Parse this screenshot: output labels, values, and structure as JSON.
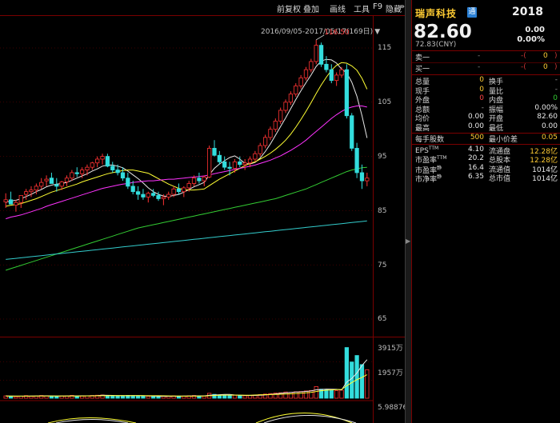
{
  "toolbar": {
    "items": [
      "前复权",
      "叠加",
      "画线",
      "工具",
      "F9",
      "隐藏"
    ],
    "more_glyph": "»"
  },
  "chart": {
    "date_range": "2016/09/05-2017/05/17(169日)",
    "range_arrow": "▼",
    "max_label": "116.50",
    "y_ticks": [
      "115",
      "105",
      "95",
      "85",
      "75",
      "65"
    ],
    "volume_ticks": [
      "3915万",
      "1957万"
    ],
    "bottom_value": "5.98876",
    "colors": {
      "up": "#ff3333",
      "down": "#33dddd",
      "ma5": "#e8e8e8",
      "ma10": "#ffff33",
      "ma20": "#ff33ff",
      "ma60": "#33cc33",
      "ma120": "#33cccc",
      "grid_red": "#7a0000"
    }
  },
  "chart_data": {
    "type": "candlestick",
    "ylim": [
      62,
      118
    ],
    "candles": [
      [
        86.6,
        88.2,
        85.5,
        87.0
      ],
      [
        87.0,
        88.5,
        86.5,
        86.2
      ],
      [
        86.0,
        87.0,
        84.8,
        86.5
      ],
      [
        86.5,
        87.5,
        85.5,
        87.8
      ],
      [
        88.0,
        89.0,
        87.0,
        88.5
      ],
      [
        88.5,
        89.5,
        87.5,
        88.8
      ],
      [
        88.8,
        90.0,
        88.0,
        89.5
      ],
      [
        89.5,
        91.0,
        89.0,
        90.2
      ],
      [
        90.5,
        91.5,
        89.5,
        90.8
      ],
      [
        91.0,
        92.0,
        90.0,
        90.0
      ],
      [
        89.8,
        91.0,
        88.5,
        89.5
      ],
      [
        89.5,
        90.5,
        88.8,
        90.3
      ],
      [
        90.3,
        91.5,
        89.5,
        91.0
      ],
      [
        91.0,
        92.5,
        90.5,
        92.0
      ],
      [
        92.0,
        93.0,
        91.2,
        91.8
      ],
      [
        91.8,
        93.0,
        91.0,
        92.5
      ],
      [
        92.5,
        93.5,
        91.5,
        93.0
      ],
      [
        93.0,
        94.0,
        92.5,
        93.8
      ],
      [
        93.8,
        95.0,
        93.0,
        94.5
      ],
      [
        94.5,
        95.5,
        93.5,
        95.0
      ],
      [
        95.0,
        95.5,
        93.0,
        93.2
      ],
      [
        93.2,
        94.0,
        92.0,
        92.5
      ],
      [
        92.5,
        93.5,
        91.5,
        92.0
      ],
      [
        92.0,
        93.0,
        90.5,
        91.0
      ],
      [
        91.0,
        92.0,
        89.0,
        89.5
      ],
      [
        89.5,
        90.5,
        88.0,
        88.5
      ],
      [
        88.5,
        89.5,
        87.0,
        88.0
      ],
      [
        88.0,
        89.0,
        87.0,
        87.5
      ],
      [
        87.5,
        88.5,
        86.5,
        88.2
      ],
      [
        88.2,
        89.0,
        87.5,
        87.8
      ],
      [
        87.8,
        88.5,
        86.8,
        87.2
      ],
      [
        87.2,
        88.0,
        86.0,
        87.5
      ],
      [
        87.5,
        88.5,
        87.0,
        88.0
      ],
      [
        88.0,
        89.5,
        87.5,
        89.0
      ],
      [
        89.0,
        90.0,
        88.0,
        88.5
      ],
      [
        88.5,
        89.5,
        87.5,
        89.2
      ],
      [
        89.2,
        90.5,
        88.5,
        90.0
      ],
      [
        90.0,
        91.5,
        89.5,
        91.0
      ],
      [
        91.0,
        92.0,
        90.0,
        90.5
      ],
      [
        90.5,
        91.5,
        89.5,
        91.2
      ],
      [
        91.2,
        97.0,
        91.0,
        96.5
      ],
      [
        96.5,
        98.0,
        95.0,
        95.2
      ],
      [
        95.2,
        96.0,
        93.5,
        94.0
      ],
      [
        94.0,
        95.0,
        92.5,
        93.0
      ],
      [
        93.0,
        94.0,
        91.5,
        92.8
      ],
      [
        92.8,
        94.5,
        92.0,
        94.0
      ],
      [
        94.0,
        95.0,
        93.0,
        93.5
      ],
      [
        93.5,
        94.5,
        92.5,
        93.8
      ],
      [
        93.8,
        95.0,
        93.0,
        94.5
      ],
      [
        94.5,
        96.0,
        94.0,
        95.5
      ],
      [
        95.5,
        97.5,
        95.0,
        97.0
      ],
      [
        97.0,
        99.0,
        96.5,
        98.5
      ],
      [
        98.5,
        100.5,
        98.0,
        100.0
      ],
      [
        100.0,
        102.0,
        99.5,
        101.5
      ],
      [
        101.5,
        104.0,
        101.0,
        103.5
      ],
      [
        103.5,
        105.5,
        103.0,
        105.0
      ],
      [
        105.0,
        107.0,
        104.5,
        106.5
      ],
      [
        106.5,
        108.5,
        106.0,
        108.0
      ],
      [
        108.0,
        110.0,
        107.5,
        109.5
      ],
      [
        109.5,
        111.5,
        109.0,
        111.0
      ],
      [
        111.0,
        113.0,
        110.5,
        112.5
      ],
      [
        112.5,
        116.5,
        112.0,
        115.5
      ],
      [
        115.5,
        116.0,
        111.5,
        112.0
      ],
      [
        112.0,
        113.5,
        110.5,
        111.0
      ],
      [
        111.0,
        112.0,
        108.5,
        109.0
      ],
      [
        109.0,
        110.5,
        108.0,
        110.0
      ],
      [
        110.0,
        111.5,
        109.5,
        111.0
      ],
      [
        111.0,
        112.0,
        102.0,
        102.5
      ],
      [
        102.5,
        103.0,
        96.0,
        96.5
      ],
      [
        96.5,
        97.5,
        91.0,
        92.0
      ],
      [
        92.0,
        93.5,
        89.0,
        90.5
      ],
      [
        90.5,
        92.0,
        89.5,
        91.0
      ]
    ],
    "ma_series": [
      {
        "key": "ma5",
        "values": [
          86.5,
          86.8,
          86.9,
          87.2,
          87.6,
          88.0,
          88.5,
          88.9,
          89.4,
          89.7,
          89.9,
          90.0,
          90.2,
          90.6,
          91.0,
          91.4,
          91.8,
          92.3,
          92.7,
          93.2,
          93.4,
          93.4,
          93.2,
          92.9,
          92.3,
          91.6,
          90.9,
          90.1,
          89.2,
          88.5,
          88.0,
          87.7,
          87.6,
          87.8,
          88.0,
          88.4,
          88.9,
          89.4,
          89.8,
          90.2,
          91.6,
          92.8,
          93.6,
          94.2,
          94.8,
          95.1,
          94.5,
          93.7,
          93.6,
          93.9,
          94.7,
          95.9,
          97.3,
          98.9,
          100.5,
          102.1,
          103.8,
          105.5,
          107.1,
          108.6,
          110.0,
          111.6,
          112.6,
          112.9,
          112.8,
          112.2,
          111.1,
          110.4,
          108.7,
          106.1,
          102.5,
          98.4
        ]
      },
      {
        "key": "ma10",
        "values": [
          85.8,
          86.0,
          86.1,
          86.3,
          86.6,
          86.9,
          87.2,
          87.6,
          88.0,
          88.4,
          88.7,
          89.0,
          89.3,
          89.6,
          89.9,
          90.3,
          90.6,
          90.9,
          91.2,
          91.5,
          91.8,
          92.0,
          92.2,
          92.4,
          92.5,
          92.5,
          92.3,
          92.1,
          91.9,
          91.4,
          90.9,
          90.4,
          89.9,
          89.5,
          89.1,
          88.9,
          88.8,
          88.8,
          88.9,
          89.0,
          89.6,
          90.2,
          90.8,
          91.3,
          91.8,
          92.3,
          92.8,
          93.3,
          93.7,
          94.0,
          94.5,
          95.0,
          95.6,
          96.3,
          97.1,
          98.0,
          99.1,
          100.4,
          101.8,
          103.3,
          104.9,
          106.6,
          108.2,
          109.6,
          110.9,
          111.8,
          112.3,
          112.2,
          111.7,
          110.9,
          109.4,
          107.4
        ]
      },
      {
        "key": "ma20",
        "values": [
          83.5,
          83.8,
          84.0,
          84.2,
          84.5,
          84.8,
          85.1,
          85.4,
          85.8,
          86.1,
          86.4,
          86.7,
          87.0,
          87.3,
          87.6,
          87.9,
          88.2,
          88.5,
          88.8,
          89.1,
          89.3,
          89.5,
          89.7,
          89.9,
          90.0,
          90.2,
          90.3,
          90.4,
          90.5,
          90.5,
          90.6,
          90.7,
          90.8,
          90.8,
          90.9,
          91.0,
          91.1,
          91.2,
          91.3,
          91.4,
          91.6,
          91.8,
          92.0,
          92.2,
          92.4,
          92.6,
          92.8,
          93.0,
          93.2,
          93.4,
          93.7,
          94.0,
          94.3,
          94.7,
          95.1,
          95.6,
          96.1,
          96.7,
          97.3,
          98.0,
          98.8,
          99.6,
          100.4,
          101.2,
          102.0,
          102.7,
          103.3,
          103.8,
          104.1,
          104.3,
          104.3,
          104.1
        ]
      },
      {
        "key": "ma60",
        "values": [
          74.0,
          74.3,
          74.6,
          74.9,
          75.2,
          75.5,
          75.8,
          76.1,
          76.4,
          76.7,
          77.0,
          77.3,
          77.6,
          77.9,
          78.2,
          78.5,
          78.8,
          79.1,
          79.4,
          79.7,
          80.0,
          80.3,
          80.6,
          80.9,
          81.2,
          81.5,
          81.8,
          82.0,
          82.2,
          82.4,
          82.6,
          82.8,
          83.0,
          83.2,
          83.4,
          83.6,
          83.8,
          84.0,
          84.2,
          84.4,
          84.6,
          84.8,
          85.0,
          85.2,
          85.4,
          85.6,
          85.8,
          86.0,
          86.2,
          86.4,
          86.6,
          86.8,
          87.0,
          87.2,
          87.5,
          87.8,
          88.1,
          88.4,
          88.7,
          89.0,
          89.4,
          89.8,
          90.2,
          90.6,
          91.0,
          91.4,
          91.8,
          92.2,
          92.5,
          92.7,
          92.9,
          93.0
        ]
      },
      {
        "key": "ma120",
        "values": [
          76.0,
          76.1,
          76.2,
          76.3,
          76.4,
          76.5,
          76.6,
          76.7,
          76.8,
          76.9,
          77.0,
          77.1,
          77.2,
          77.3,
          77.4,
          77.5,
          77.6,
          77.7,
          77.8,
          77.9,
          78.0,
          78.1,
          78.2,
          78.3,
          78.4,
          78.5,
          78.6,
          78.7,
          78.8,
          78.9,
          79.0,
          79.1,
          79.2,
          79.3,
          79.4,
          79.5,
          79.6,
          79.7,
          79.8,
          79.9,
          80.0,
          80.1,
          80.2,
          80.3,
          80.4,
          80.5,
          80.6,
          80.7,
          80.8,
          80.9,
          81.0,
          81.1,
          81.2,
          81.3,
          81.4,
          81.5,
          81.6,
          81.7,
          81.8,
          81.9,
          82.0,
          82.1,
          82.2,
          82.3,
          82.4,
          82.5,
          82.6,
          82.7,
          82.8,
          82.9,
          83.0,
          83.1
        ]
      }
    ],
    "volume_ylim": [
      0,
      4200
    ],
    "volumes": [
      180,
      150,
      120,
      160,
      200,
      140,
      170,
      210,
      190,
      160,
      150,
      170,
      180,
      220,
      160,
      170,
      190,
      210,
      230,
      250,
      200,
      180,
      170,
      190,
      220,
      200,
      170,
      160,
      150,
      140,
      130,
      150,
      160,
      180,
      170,
      160,
      190,
      210,
      180,
      170,
      380,
      300,
      250,
      230,
      210,
      230,
      200,
      190,
      210,
      240,
      280,
      320,
      360,
      400,
      420,
      480,
      450,
      500,
      520,
      560,
      600,
      900,
      700,
      650,
      600,
      580,
      620,
      3915,
      2800,
      3300,
      2600,
      2200
    ],
    "volume_ma": [
      {
        "key": "ma5",
        "values": [
          170,
          165,
          158,
          160,
          162,
          168,
          172,
          180,
          185,
          178,
          172,
          170,
          172,
          180,
          182,
          184,
          186,
          192,
          206,
          226,
          222,
          214,
          204,
          196,
          192,
          196,
          198,
          192,
          182,
          168,
          154,
          148,
          146,
          152,
          156,
          164,
          172,
          180,
          182,
          180,
          230,
          250,
          270,
          290,
          290,
          250,
          228,
          214,
          210,
          218,
          230,
          254,
          296,
          334,
          376,
          422,
          452,
          474,
          496,
          528,
          560,
          646,
          676,
          706,
          700,
          686,
          640,
          1246,
          1524,
          1946,
          2527,
          2978
        ]
      },
      {
        "key": "ma10",
        "values": [
          165,
          163,
          161,
          160,
          160,
          162,
          165,
          168,
          172,
          173,
          171,
          170,
          169,
          170,
          172,
          174,
          178,
          182,
          186,
          190,
          194,
          196,
          198,
          199,
          200,
          199,
          198,
          196,
          194,
          193,
          190,
          186,
          180,
          172,
          166,
          159,
          160,
          162,
          167,
          168,
          191,
          210,
          226,
          238,
          242,
          240,
          239,
          236,
          237,
          245,
          260,
          276,
          286,
          294,
          308,
          324,
          340,
          364,
          390,
          416,
          444,
          520,
          582,
          620,
          640,
          662,
          680,
          964,
          1213,
          1436,
          1614,
          1813
        ]
      }
    ]
  },
  "panel": {
    "stock_name": "瑞声科技",
    "tong_badge": "通",
    "code": "2018",
    "price": "82.60",
    "change": "0.00",
    "change_pct": "0.00%",
    "sub_price": "72.83(CNY)",
    "quotes": [
      {
        "label": "卖一",
        "mid": "-",
        "paren_left": "-(",
        "value": "0",
        "paren_right": ")"
      },
      {
        "label": "买一",
        "mid": "-",
        "paren_left": "-(",
        "value": "0",
        "paren_right": ")"
      }
    ],
    "stats_rows": [
      [
        {
          "label": "总量",
          "value": "0",
          "vc": "yellow"
        },
        {
          "label": "换手",
          "value": "-",
          "vc": "grey"
        }
      ],
      [
        {
          "label": "现手",
          "value": "0",
          "vc": "yellow"
        },
        {
          "label": "量比",
          "value": "-",
          "vc": "grey"
        }
      ],
      [
        {
          "label": "外盘",
          "value": "0",
          "vc": "red"
        },
        {
          "label": "内盘",
          "value": "0",
          "vc": "green"
        }
      ],
      [
        {
          "label": "总额",
          "value": "-",
          "vc": "grey"
        },
        {
          "label": "振幅",
          "value": "0.00%",
          "vc": "white"
        }
      ],
      [
        {
          "label": "均价",
          "value": "0.00",
          "vc": "white"
        },
        {
          "label": "开盘",
          "value": "82.60",
          "vc": "white"
        }
      ],
      [
        {
          "label": "最高",
          "value": "0.00",
          "vc": "white"
        },
        {
          "label": "最低",
          "value": "0.00",
          "vc": "white"
        }
      ],
      [
        {
          "label": "每手股数",
          "value": "500",
          "vc": "yellow"
        },
        {
          "label": "最小价差",
          "value": "0.05",
          "vc": "yellow"
        }
      ],
      [
        {
          "label": "EPS",
          "sup": "TTM",
          "value": "4.10",
          "vc": "white"
        },
        {
          "label": "流通盘",
          "value": "12.28亿",
          "vc": "yellow"
        }
      ],
      [
        {
          "label": "市盈率",
          "sup": "TTM",
          "value": "20.2",
          "vc": "white"
        },
        {
          "label": "总股本",
          "value": "12.28亿",
          "vc": "yellow"
        }
      ],
      [
        {
          "label": "市盈率",
          "sup": "静",
          "value": "16.4",
          "vc": "white"
        },
        {
          "label": "流通值",
          "value": "1014亿",
          "vc": "white"
        }
      ],
      [
        {
          "label": "市净率",
          "sup": "静",
          "value": "6.35",
          "vc": "white"
        },
        {
          "label": "总市值",
          "value": "1014亿",
          "vc": "white"
        }
      ]
    ]
  }
}
